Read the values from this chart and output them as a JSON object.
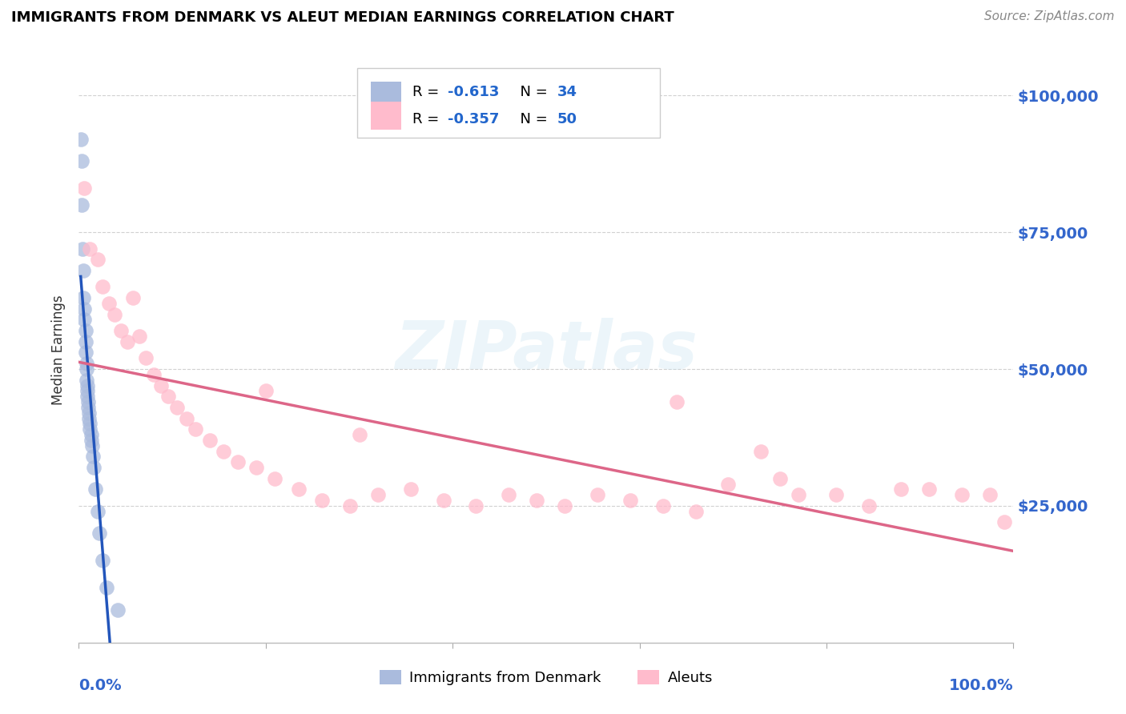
{
  "title": "IMMIGRANTS FROM DENMARK VS ALEUT MEDIAN EARNINGS CORRELATION CHART",
  "source": "Source: ZipAtlas.com",
  "ylabel": "Median Earnings",
  "ytick_labels": [
    "$25,000",
    "$50,000",
    "$75,000",
    "$100,000"
  ],
  "ytick_values": [
    25000,
    50000,
    75000,
    100000
  ],
  "ylim_max": 107000,
  "xlim_max": 1.0,
  "legend_label1": "Immigrants from Denmark",
  "legend_label2": "Aleuts",
  "R1": "-0.613",
  "N1": "34",
  "R2": "-0.357",
  "N2": "50",
  "color_blue": "#AABBDD",
  "color_pink": "#FFBBCC",
  "line_blue": "#2255BB",
  "line_pink": "#DD6688",
  "watermark_text": "ZIPatlas",
  "denmark_x": [
    0.002,
    0.003,
    0.003,
    0.004,
    0.005,
    0.005,
    0.006,
    0.006,
    0.007,
    0.007,
    0.007,
    0.008,
    0.008,
    0.008,
    0.009,
    0.009,
    0.009,
    0.01,
    0.01,
    0.011,
    0.011,
    0.012,
    0.012,
    0.013,
    0.013,
    0.014,
    0.015,
    0.016,
    0.018,
    0.02,
    0.022,
    0.025,
    0.03,
    0.042
  ],
  "denmark_y": [
    92000,
    88000,
    80000,
    72000,
    68000,
    63000,
    61000,
    59000,
    57000,
    55000,
    53000,
    51000,
    50000,
    48000,
    47000,
    46000,
    45000,
    44000,
    43000,
    42000,
    41000,
    40000,
    39000,
    38000,
    37000,
    36000,
    34000,
    32000,
    28000,
    24000,
    20000,
    15000,
    10000,
    6000
  ],
  "aleut_x": [
    0.006,
    0.012,
    0.02,
    0.025,
    0.032,
    0.038,
    0.045,
    0.052,
    0.058,
    0.065,
    0.072,
    0.08,
    0.088,
    0.096,
    0.105,
    0.115,
    0.125,
    0.14,
    0.155,
    0.17,
    0.19,
    0.21,
    0.235,
    0.26,
    0.29,
    0.32,
    0.355,
    0.39,
    0.425,
    0.46,
    0.49,
    0.52,
    0.555,
    0.59,
    0.625,
    0.66,
    0.695,
    0.73,
    0.77,
    0.81,
    0.845,
    0.88,
    0.91,
    0.945,
    0.975,
    0.99,
    0.2,
    0.64,
    0.3,
    0.75
  ],
  "aleut_y": [
    83000,
    72000,
    70000,
    65000,
    62000,
    60000,
    57000,
    55000,
    63000,
    56000,
    52000,
    49000,
    47000,
    45000,
    43000,
    41000,
    39000,
    37000,
    35000,
    33000,
    32000,
    30000,
    28000,
    26000,
    25000,
    27000,
    28000,
    26000,
    25000,
    27000,
    26000,
    25000,
    27000,
    26000,
    25000,
    24000,
    29000,
    35000,
    27000,
    27000,
    25000,
    28000,
    28000,
    27000,
    27000,
    22000,
    46000,
    44000,
    38000,
    30000
  ]
}
